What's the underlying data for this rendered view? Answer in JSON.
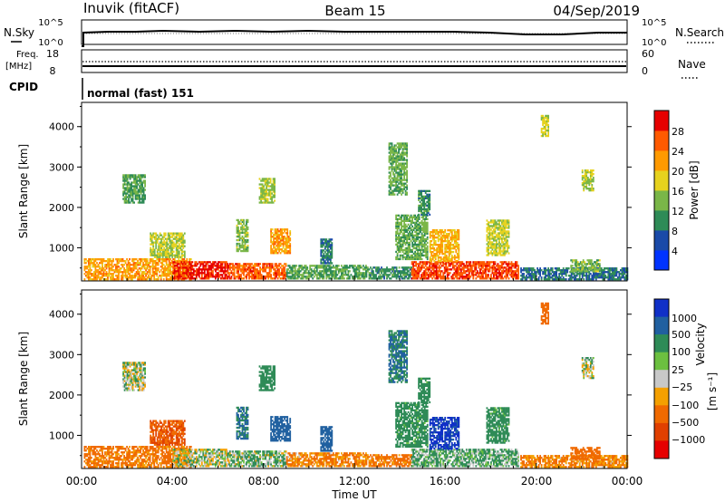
{
  "header": {
    "station": "Inuvik (fitACF)",
    "beam": "Beam 15",
    "date": "04/Sep/2019"
  },
  "top_panel": {
    "left_label": "N.Sky",
    "right_label": "N.Search",
    "left_ticks": [
      "10^5",
      "10^0"
    ],
    "right_ticks": [
      "10^5",
      "10^0"
    ]
  },
  "freq_panel": {
    "left_label": "Freq.",
    "left_unit": "[MHz]",
    "right_label": "Nave",
    "left_ticks": [
      "18",
      "8"
    ],
    "right_ticks": [
      "60",
      "0"
    ]
  },
  "cpid": {
    "label": "CPID",
    "value": "normal (fast) 151"
  },
  "xaxis": {
    "label": "Time UT",
    "ticks": [
      "00:00",
      "04:00",
      "08:00",
      "12:00",
      "16:00",
      "20:00",
      "00:00"
    ]
  },
  "ylabel": "Slant Range [km]",
  "yticks": [
    "4000",
    "3000",
    "2000",
    "1000"
  ],
  "power_colorbar": {
    "label": "Power [dB]",
    "ticks": [
      "28",
      "24",
      "20",
      "16",
      "12",
      "8",
      "4"
    ]
  },
  "velocity_colorbar": {
    "label": "Velocity",
    "unit": "[m s⁻¹]",
    "ticks": [
      "1000",
      "500",
      "100",
      "25",
      "−25",
      "−100",
      "−500",
      "−1000"
    ]
  },
  "colors": {
    "power": [
      "#0033ff",
      "#1a4aa8",
      "#2e8b57",
      "#7ab648",
      "#e6d21e",
      "#ff9a00",
      "#ff5a00",
      "#e60000"
    ],
    "velocity": [
      "#1030c8",
      "#2060a0",
      "#2e8b57",
      "#6cc040",
      "#c8c8c8",
      "#f4a000",
      "#f06a00",
      "#e04000",
      "#e60000"
    ]
  },
  "chart_data": [
    {
      "type": "heatmap",
      "name": "power",
      "x_unit": "hours UT",
      "xlim": [
        0,
        24
      ],
      "ylabel": "Slant Range [km]",
      "ylim": [
        180,
        4600
      ],
      "zlabel": "Power [dB]",
      "zlim": [
        0,
        30
      ],
      "regions": [
        {
          "t": [
            0.1,
            4.8
          ],
          "r": [
            200,
            700
          ],
          "v": 22
        },
        {
          "t": [
            4.0,
            6.5
          ],
          "r": [
            220,
            650
          ],
          "v": 29
        },
        {
          "t": [
            6.5,
            9.0
          ],
          "r": [
            220,
            600
          ],
          "v": 26
        },
        {
          "t": [
            9.0,
            12.5
          ],
          "r": [
            220,
            550
          ],
          "v": 12
        },
        {
          "t": [
            12.5,
            14.5
          ],
          "r": [
            220,
            500
          ],
          "v": 10
        },
        {
          "t": [
            14.5,
            19.2
          ],
          "r": [
            220,
            650
          ],
          "v": 27
        },
        {
          "t": [
            19.3,
            24.0
          ],
          "r": [
            200,
            500
          ],
          "v": 8
        },
        {
          "t": [
            3.0,
            4.5
          ],
          "r": [
            750,
            1350
          ],
          "v": 16
        },
        {
          "t": [
            6.8,
            7.3
          ],
          "r": [
            900,
            1700
          ],
          "v": 14
        },
        {
          "t": [
            8.3,
            9.2
          ],
          "r": [
            850,
            1450
          ],
          "v": 22
        },
        {
          "t": [
            10.5,
            11.0
          ],
          "r": [
            600,
            1200
          ],
          "v": 9
        },
        {
          "t": [
            13.8,
            15.2
          ],
          "r": [
            700,
            1800
          ],
          "v": 13
        },
        {
          "t": [
            15.3,
            16.6
          ],
          "r": [
            650,
            1450
          ],
          "v": 21
        },
        {
          "t": [
            17.8,
            18.8
          ],
          "r": [
            800,
            1700
          ],
          "v": 17
        },
        {
          "t": [
            1.8,
            2.8
          ],
          "r": [
            2100,
            2800
          ],
          "v": 12
        },
        {
          "t": [
            7.8,
            8.5
          ],
          "r": [
            2100,
            2700
          ],
          "v": 15
        },
        {
          "t": [
            13.5,
            14.3
          ],
          "r": [
            2300,
            3600
          ],
          "v": 13
        },
        {
          "t": [
            14.8,
            15.3
          ],
          "r": [
            1800,
            2400
          ],
          "v": 10
        },
        {
          "t": [
            22.0,
            22.5
          ],
          "r": [
            2400,
            2900
          ],
          "v": 16
        },
        {
          "t": [
            20.2,
            20.5
          ],
          "r": [
            3750,
            4250
          ],
          "v": 17
        },
        {
          "t": [
            21.5,
            22.8
          ],
          "r": [
            400,
            700
          ],
          "v": 14
        }
      ]
    },
    {
      "type": "heatmap",
      "name": "velocity",
      "x_unit": "hours UT",
      "xlim": [
        0,
        24
      ],
      "ylabel": "Slant Range [km]",
      "ylim": [
        180,
        4600
      ],
      "zlabel": "Velocity [m s⁻¹]",
      "zlim": [
        -1000,
        1000
      ],
      "regions": [
        {
          "t": [
            0.1,
            4.8
          ],
          "r": [
            200,
            700
          ],
          "v": -150
        },
        {
          "t": [
            4.0,
            6.5
          ],
          "r": [
            220,
            650
          ],
          "v": 10
        },
        {
          "t": [
            6.5,
            9.0
          ],
          "r": [
            220,
            600
          ],
          "v": 60
        },
        {
          "t": [
            9.0,
            12.5
          ],
          "r": [
            220,
            550
          ],
          "v": -120
        },
        {
          "t": [
            12.5,
            14.5
          ],
          "r": [
            220,
            500
          ],
          "v": -150
        },
        {
          "t": [
            14.5,
            19.2
          ],
          "r": [
            220,
            650
          ],
          "v": 80
        },
        {
          "t": [
            19.3,
            24.0
          ],
          "r": [
            200,
            500
          ],
          "v": -120
        },
        {
          "t": [
            3.0,
            4.5
          ],
          "r": [
            750,
            1350
          ],
          "v": -300
        },
        {
          "t": [
            6.8,
            7.3
          ],
          "r": [
            900,
            1700
          ],
          "v": 300
        },
        {
          "t": [
            8.3,
            9.2
          ],
          "r": [
            850,
            1450
          ],
          "v": 600
        },
        {
          "t": [
            10.5,
            11.0
          ],
          "r": [
            600,
            1200
          ],
          "v": 400
        },
        {
          "t": [
            13.8,
            15.2
          ],
          "r": [
            700,
            1800
          ],
          "v": 150
        },
        {
          "t": [
            15.3,
            16.6
          ],
          "r": [
            650,
            1450
          ],
          "v": 800
        },
        {
          "t": [
            17.8,
            18.8
          ],
          "r": [
            800,
            1700
          ],
          "v": 150
        },
        {
          "t": [
            1.8,
            2.8
          ],
          "r": [
            2100,
            2800
          ],
          "v": 20
        },
        {
          "t": [
            7.8,
            8.5
          ],
          "r": [
            2100,
            2700
          ],
          "v": 200
        },
        {
          "t": [
            13.5,
            14.3
          ],
          "r": [
            2300,
            3600
          ],
          "v": 300
        },
        {
          "t": [
            14.8,
            15.3
          ],
          "r": [
            1800,
            2400
          ],
          "v": 150
        },
        {
          "t": [
            22.0,
            22.5
          ],
          "r": [
            2400,
            2900
          ],
          "v": 15
        },
        {
          "t": [
            20.2,
            20.5
          ],
          "r": [
            3750,
            4250
          ],
          "v": -200
        },
        {
          "t": [
            21.5,
            22.8
          ],
          "r": [
            400,
            700
          ],
          "v": -200
        }
      ]
    }
  ]
}
